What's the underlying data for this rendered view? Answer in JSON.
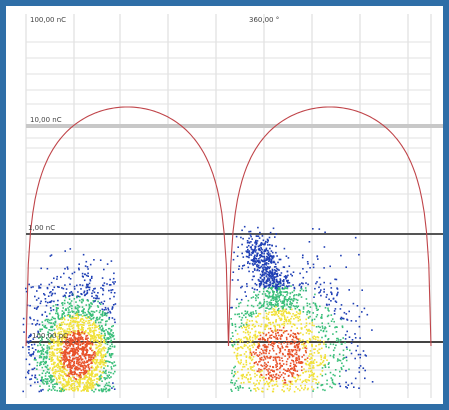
{
  "chart_data": {
    "type": "scatter",
    "title": "",
    "xlabel": "",
    "ylabel": "",
    "y_scale": "log",
    "x_phase_unit": "degrees",
    "top_label": "360,00 °",
    "y_tick_labels": [
      "100,00 nC",
      "10,00 nC",
      "1,00 nC",
      "100,00 pC"
    ],
    "y_ticks_nC": [
      100,
      10,
      1,
      0.1
    ],
    "ylim_nC": [
      0.03,
      100
    ],
    "xlim_deg": [
      0,
      360
    ],
    "grid": true,
    "reference_curve": {
      "name": "",
      "kind": "sine",
      "color": "#c0454a",
      "phase_deg": [
        0,
        360
      ],
      "peak_nC": 15,
      "peak_at_deg": 90
    },
    "clusters": [
      {
        "name": "",
        "phase_range_deg": [
          0,
          70
        ],
        "charge_range_nC": [
          0.04,
          0.7
        ],
        "density_peak_at": {
          "phase_deg": 45,
          "charge_nC": 0.1
        }
      },
      {
        "name": "",
        "phase_range_deg": [
          185,
          300
        ],
        "charge_range_nC": [
          0.04,
          1.1
        ],
        "density_peak_at": {
          "phase_deg": 225,
          "charge_nC": 0.1
        }
      }
    ],
    "colors": {
      "frame": "#2f6ea7",
      "low_density": "#1f3fb5",
      "mid_density": "#3bbf7a",
      "high_density": "#f1e13a",
      "peak_density": "#e8522a"
    }
  }
}
